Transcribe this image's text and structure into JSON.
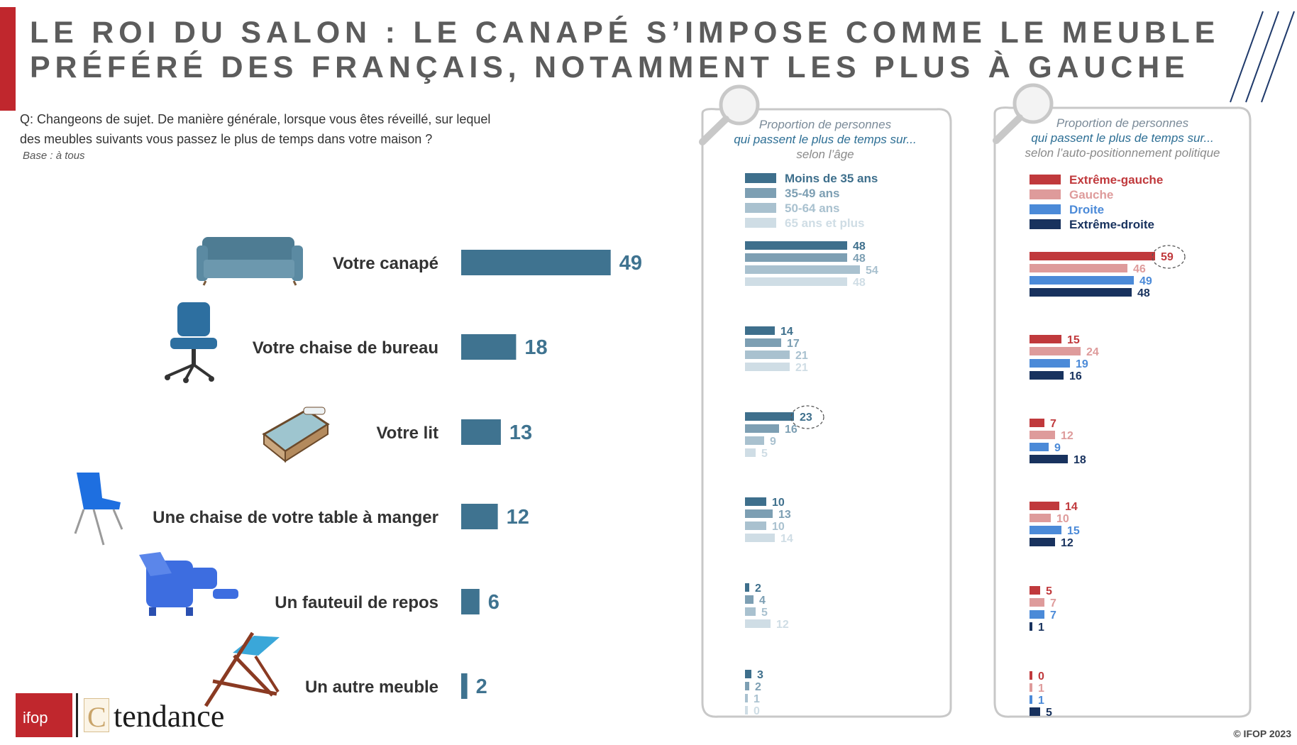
{
  "title": {
    "line1": "LE ROI DU SALON : LE CANAPÉ S’IMPOSE COMME LE MEUBLE",
    "line2": "PRÉFÉRÉ DES FRANÇAIS, NOTAMMENT LES PLUS À GAUCHE"
  },
  "question": {
    "line1": "Q: Changeons de sujet. De manière générale, lorsque vous êtes réveillé, sur lequel",
    "line2": "des meubles suivants vous passez le plus de temps dans votre maison ?",
    "base": "Base : à tous"
  },
  "logos": {
    "ifop": "ifop",
    "brand_letter": "C",
    "brand_word": "tendance"
  },
  "copyright": "© IFOP 2023",
  "colors": {
    "main_bar": "#3f7390",
    "title": "#5c5c5c",
    "accent_red": "#c0272d",
    "age": [
      "#3e6f8c",
      "#7d9fb3",
      "#a9c1cf",
      "#cfdde5"
    ],
    "pol": [
      "#c0393c",
      "#de9b9b",
      "#4b8ad8",
      "#18325e"
    ]
  },
  "icons": [
    "sofa-icon",
    "office-chair-icon",
    "bed-icon",
    "dining-chair-icon",
    "recliner-icon",
    "deckchair-icon",
    "magnifier-icon"
  ],
  "chart_data": [
    {
      "type": "bar",
      "orientation": "horizontal",
      "categories": [
        "Votre canapé",
        "Votre chaise de bureau",
        "Votre lit",
        "Une chaise de votre table à manger",
        "Un fauteuil de repos",
        "Un autre meuble"
      ],
      "values": [
        49,
        18,
        13,
        12,
        6,
        2
      ]
    },
    {
      "type": "bar",
      "orientation": "horizontal",
      "title": "Proportion de personnes",
      "subtitle": "qui passent le plus de temps sur...",
      "breakdown": "selon l’âge",
      "legend_position": "top",
      "categories": [
        "Votre canapé",
        "Votre chaise de bureau",
        "Votre lit",
        "Une chaise de votre table à manger",
        "Un fauteuil de repos",
        "Un autre meuble"
      ],
      "series": [
        {
          "name": "Moins de 35 ans",
          "values": [
            48,
            14,
            23,
            10,
            2,
            3
          ]
        },
        {
          "name": "35-49 ans",
          "values": [
            48,
            17,
            16,
            13,
            4,
            2
          ]
        },
        {
          "name": "50-64 ans",
          "values": [
            54,
            21,
            9,
            10,
            5,
            1
          ]
        },
        {
          "name": "65 ans et plus",
          "values": [
            48,
            21,
            5,
            14,
            12,
            0
          ]
        }
      ],
      "highlight": {
        "category": "Votre lit",
        "series": "Moins de 35 ans",
        "value": 23
      }
    },
    {
      "type": "bar",
      "orientation": "horizontal",
      "title": "Proportion de personnes",
      "subtitle": "qui passent le plus de temps sur...",
      "breakdown": "selon l’auto-positionnement politique",
      "legend_position": "top",
      "categories": [
        "Votre canapé",
        "Votre chaise de bureau",
        "Votre lit",
        "Une chaise de votre table à manger",
        "Un fauteuil de repos",
        "Un autre meuble"
      ],
      "series": [
        {
          "name": "Extrême-gauche",
          "values": [
            59,
            15,
            7,
            14,
            5,
            0
          ]
        },
        {
          "name": "Gauche",
          "values": [
            46,
            24,
            12,
            10,
            7,
            1
          ]
        },
        {
          "name": "Droite",
          "values": [
            49,
            19,
            9,
            15,
            7,
            1
          ]
        },
        {
          "name": "Extrême-droite",
          "values": [
            48,
            16,
            18,
            12,
            1,
            5
          ]
        }
      ],
      "highlight": {
        "category": "Votre canapé",
        "series": "Extrême-gauche",
        "value": 59
      }
    }
  ]
}
